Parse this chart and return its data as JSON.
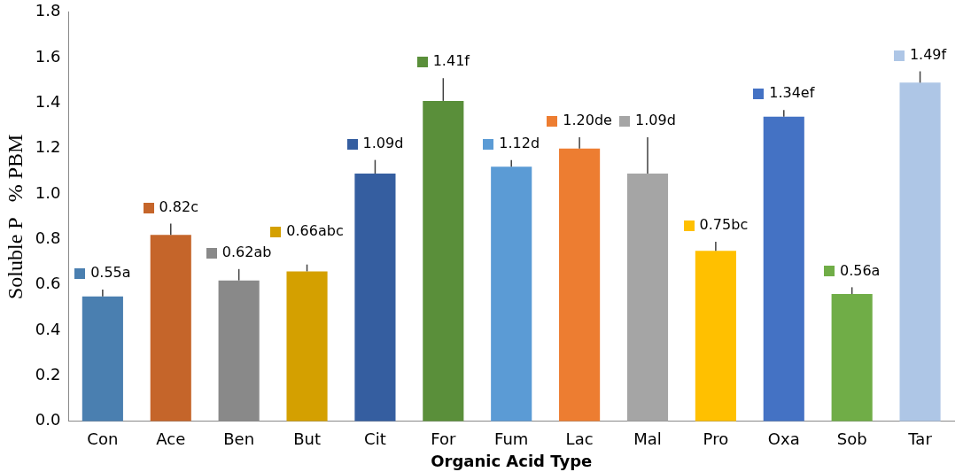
{
  "chart_data": {
    "type": "bar",
    "xlabel": "Organic Acid Type",
    "ylabel": "Soluble P   % PBM",
    "categories": [
      "Con",
      "Ace",
      "Ben",
      "But",
      "Cit",
      "For",
      "Fum",
      "Lac",
      "Mal",
      "Pro",
      "Oxa",
      "Sob",
      "Tar"
    ],
    "values": [
      0.55,
      0.82,
      0.62,
      0.66,
      1.09,
      1.41,
      1.12,
      1.2,
      1.09,
      0.75,
      1.34,
      0.56,
      1.49
    ],
    "colors": [
      "#4a7fb0",
      "#c5652a",
      "#898989",
      "#d4a000",
      "#355ea0",
      "#5a8f3a",
      "#5b9bd5",
      "#ed7d31",
      "#a5a5a5",
      "#ffc000",
      "#4472c4",
      "#70ad47",
      "#aec6e6"
    ],
    "errors": [
      [
        0.55,
        0.58
      ],
      [
        0.82,
        0.87
      ],
      [
        0.62,
        0.67
      ],
      [
        0.66,
        0.69
      ],
      [
        1.09,
        1.15
      ],
      [
        1.41,
        1.51
      ],
      [
        1.12,
        1.15
      ],
      [
        1.2,
        1.25
      ],
      [
        1.09,
        1.25
      ],
      [
        0.75,
        0.79
      ],
      [
        1.34,
        1.37
      ],
      [
        0.56,
        0.59
      ],
      [
        1.49,
        1.54
      ]
    ],
    "value_labels": [
      "0.55a",
      "0.82c",
      "0.62ab",
      "0.66abc",
      "1.09d",
      "1.41f",
      "1.12d",
      "1.20de",
      "1.09d",
      "0.75bc",
      "1.34ef",
      "0.56a",
      "1.49f"
    ],
    "ylim": [
      0,
      1.8
    ],
    "yticks": [
      {
        "value": 0,
        "label": "0.0"
      },
      {
        "value": 0.2,
        "label": "0.2"
      },
      {
        "value": 0.4,
        "label": "0.4"
      },
      {
        "value": 0.6,
        "label": "0.6"
      },
      {
        "value": 0.8,
        "label": "0.8"
      },
      {
        "value": 1.0,
        "label": "1.0"
      },
      {
        "value": 1.2,
        "label": "1.2"
      },
      {
        "value": 1.4,
        "label": "1.4"
      },
      {
        "value": 1.6,
        "label": "1.6"
      },
      {
        "value": 1.8,
        "label": "1.8"
      }
    ],
    "grid": false,
    "legend": false
  }
}
